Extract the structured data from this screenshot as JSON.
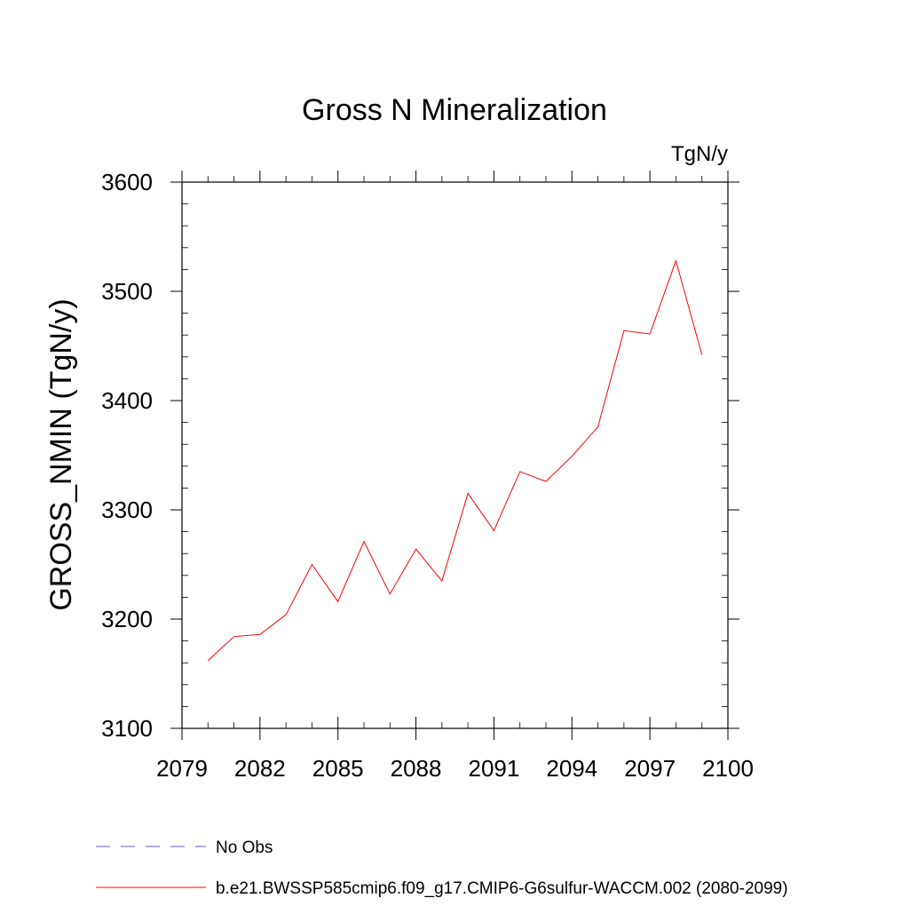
{
  "chart_data": {
    "type": "line",
    "title": "Gross N Mineralization",
    "units_label": "TgN/y",
    "xlabel": "",
    "ylabel": "GROSS_NMIN  (TgN/y)",
    "xlim": [
      2079,
      2100
    ],
    "ylim": [
      3100,
      3600
    ],
    "x_ticks": [
      2079,
      2082,
      2085,
      2088,
      2091,
      2094,
      2097,
      2100
    ],
    "y_ticks": [
      3100,
      3200,
      3300,
      3400,
      3500,
      3600
    ],
    "grid": false,
    "legend_position": "bottom",
    "x": [
      2080,
      2081,
      2082,
      2083,
      2084,
      2085,
      2086,
      2087,
      2088,
      2089,
      2090,
      2091,
      2092,
      2093,
      2094,
      2095,
      2096,
      2097,
      2098,
      2099
    ],
    "series": [
      {
        "name": "b.e21.BWSSP585cmip6.f09_g17.CMIP6-G6sulfur-WACCM.002 (2080-2099)",
        "color": "#ff0000",
        "style": "solid",
        "values": [
          3162,
          3184,
          3186,
          3204,
          3250,
          3216,
          3271,
          3223,
          3264,
          3235,
          3315,
          3281,
          3335,
          3326,
          3349,
          3376,
          3464,
          3461,
          3528,
          3442
        ]
      }
    ],
    "legend": [
      {
        "label": "No Obs",
        "color": "#6a5acd",
        "style": "dashed"
      },
      {
        "label": "b.e21.BWSSP585cmip6.f09_g17.CMIP6-G6sulfur-WACCM.002 (2080-2099)",
        "color": "#ff0000",
        "style": "solid"
      }
    ]
  }
}
